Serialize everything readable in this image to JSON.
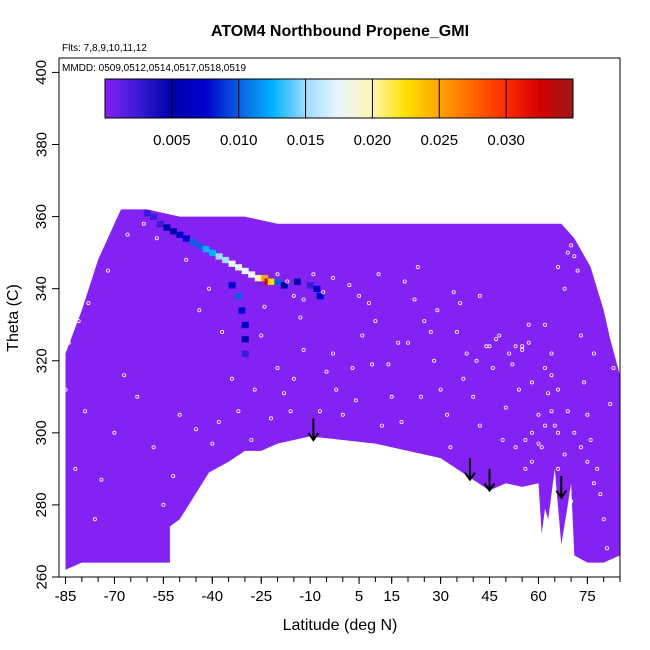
{
  "chart_data": {
    "type": "heatmap",
    "title": "ATOM4 Northbound Propene_GMI",
    "notes": [
      "Flts: 7,8,9,10,11,12",
      "MMDD: 0509,0512,0514,0517,0518,0519"
    ],
    "xlabel": "Latitude (deg N)",
    "ylabel": "Theta (C)",
    "xlim": [
      -87,
      85
    ],
    "ylim": [
      260,
      404
    ],
    "x_ticks": [
      -85,
      -70,
      -55,
      -40,
      -25,
      -10,
      5,
      15,
      30,
      45,
      60,
      75
    ],
    "x_tick_labels": [
      "-85",
      "-70",
      "-55",
      "-40",
      "-25",
      "-10",
      "5",
      "15",
      "30",
      "45",
      "60",
      "75"
    ],
    "y_ticks": [
      260,
      280,
      300,
      320,
      340,
      360,
      380,
      400
    ],
    "y_tick_labels": [
      "260",
      "280",
      "300",
      "320",
      "340",
      "360",
      "380",
      "400"
    ],
    "colorbar": {
      "min": 0.0,
      "max": 0.035,
      "ticks": [
        0.005,
        0.01,
        0.015,
        0.02,
        0.025,
        0.03
      ],
      "tick_labels": [
        "0.005",
        "0.010",
        "0.015",
        "0.020",
        "0.025",
        "0.030"
      ],
      "colors": [
        "#8322f2",
        "#3a1bd6",
        "#0000aa",
        "#0000cd",
        "#0c5ee0",
        "#00b0ff",
        "#9fdcff",
        "#eaf6ff",
        "#fff6b0",
        "#ffe000",
        "#ffa500",
        "#ff6600",
        "#ff2a00",
        "#d40000",
        "#9c1a1a"
      ]
    },
    "background_color": "#8322f2",
    "domain_top": [
      [
        -85,
        322
      ],
      [
        -80,
        334
      ],
      [
        -75,
        348
      ],
      [
        -70,
        358
      ],
      [
        -68,
        362
      ],
      [
        -60,
        362
      ],
      [
        -50,
        360
      ],
      [
        -40,
        360
      ],
      [
        -30,
        360
      ],
      [
        -20,
        358
      ],
      [
        -10,
        358
      ],
      [
        0,
        358
      ],
      [
        10,
        358
      ],
      [
        20,
        358
      ],
      [
        30,
        358
      ],
      [
        40,
        358
      ],
      [
        50,
        358
      ],
      [
        60,
        358
      ],
      [
        67,
        358
      ],
      [
        71,
        354
      ],
      [
        76,
        346
      ],
      [
        80,
        334
      ],
      [
        82,
        326
      ],
      [
        85,
        316
      ]
    ],
    "domain_bottom": [
      [
        85,
        266
      ],
      [
        80,
        264
      ],
      [
        75,
        264
      ],
      [
        71,
        266
      ],
      [
        70,
        286
      ],
      [
        69,
        280
      ],
      [
        67,
        269
      ],
      [
        65,
        290
      ],
      [
        63,
        276
      ],
      [
        62,
        279
      ],
      [
        61,
        272
      ],
      [
        60,
        286
      ],
      [
        55,
        285
      ],
      [
        50,
        286
      ],
      [
        45,
        284
      ],
      [
        40,
        287
      ],
      [
        30,
        293
      ],
      [
        20,
        295
      ],
      [
        10,
        297
      ],
      [
        0,
        298
      ],
      [
        -10,
        299
      ],
      [
        -20,
        297
      ],
      [
        -25,
        295
      ],
      [
        -30,
        295
      ],
      [
        -35,
        292
      ],
      [
        -41,
        289
      ],
      [
        -50,
        276
      ],
      [
        -53,
        274
      ],
      [
        -53,
        264
      ],
      [
        -60,
        264
      ],
      [
        -70,
        264
      ],
      [
        -80,
        264
      ],
      [
        -85,
        262
      ]
    ],
    "plume_cells": [
      {
        "x": -60,
        "y": 361,
        "v": 0.004
      },
      {
        "x": -58,
        "y": 360,
        "v": 0.003
      },
      {
        "x": -56,
        "y": 358,
        "v": 0.004
      },
      {
        "x": -54,
        "y": 357,
        "v": 0.006
      },
      {
        "x": -52,
        "y": 356,
        "v": 0.007
      },
      {
        "x": -50,
        "y": 355,
        "v": 0.008
      },
      {
        "x": -48,
        "y": 354,
        "v": 0.009
      },
      {
        "x": -46,
        "y": 353,
        "v": 0.01
      },
      {
        "x": -44,
        "y": 352,
        "v": 0.011
      },
      {
        "x": -42,
        "y": 351,
        "v": 0.012
      },
      {
        "x": -40,
        "y": 350,
        "v": 0.013
      },
      {
        "x": -38,
        "y": 349,
        "v": 0.015
      },
      {
        "x": -36,
        "y": 348,
        "v": 0.016
      },
      {
        "x": -34,
        "y": 347,
        "v": 0.017
      },
      {
        "x": -32,
        "y": 346,
        "v": 0.018
      },
      {
        "x": -30,
        "y": 345,
        "v": 0.017
      },
      {
        "x": -28,
        "y": 344,
        "v": 0.018
      },
      {
        "x": -26,
        "y": 343,
        "v": 0.02
      },
      {
        "x": -24,
        "y": 343,
        "v": 0.025
      },
      {
        "x": -23,
        "y": 342,
        "v": 0.031
      },
      {
        "x": -22,
        "y": 342,
        "v": 0.023
      },
      {
        "x": -20,
        "y": 342,
        "v": 0.01
      },
      {
        "x": -18,
        "y": 341,
        "v": 0.007
      },
      {
        "x": -14,
        "y": 342,
        "v": 0.005
      },
      {
        "x": -10,
        "y": 341,
        "v": 0.004
      },
      {
        "x": -8,
        "y": 340,
        "v": 0.009
      },
      {
        "x": -7,
        "y": 338,
        "v": 0.008
      },
      {
        "x": -34,
        "y": 341,
        "v": 0.009
      },
      {
        "x": -32,
        "y": 338,
        "v": 0.011
      },
      {
        "x": -31,
        "y": 334,
        "v": 0.008
      },
      {
        "x": -30,
        "y": 330,
        "v": 0.009
      },
      {
        "x": -30,
        "y": 326,
        "v": 0.007
      },
      {
        "x": -30,
        "y": 322,
        "v": 0.004
      },
      {
        "x": -37,
        "y": 332,
        "v": 0.002
      },
      {
        "x": -36,
        "y": 322,
        "v": 0.001
      }
    ],
    "cell_size": [
      2.0,
      1.6
    ],
    "arrows": [
      {
        "x": -9,
        "y_top": 304,
        "y_bottom": 298
      },
      {
        "x": 39,
        "y_top": 293,
        "y_bottom": 287
      },
      {
        "x": 45,
        "y_top": 290,
        "y_bottom": 284
      },
      {
        "x": 67,
        "y_top": 288,
        "y_bottom": 282
      }
    ],
    "sample_points": [
      [
        -78,
        336
      ],
      [
        -81,
        331
      ],
      [
        -84,
        325
      ],
      [
        -72,
        345
      ],
      [
        -66,
        355
      ],
      [
        -61,
        358
      ],
      [
        -57,
        354
      ],
      [
        -48,
        348
      ],
      [
        -41,
        340
      ],
      [
        -44,
        334
      ],
      [
        -37,
        328
      ],
      [
        -25,
        327
      ],
      [
        -20,
        318
      ],
      [
        -18,
        311
      ],
      [
        -16,
        306
      ],
      [
        -12,
        323
      ],
      [
        -5,
        317
      ],
      [
        -2,
        312
      ],
      [
        0,
        305
      ],
      [
        3,
        318
      ],
      [
        6,
        327
      ],
      [
        8,
        336
      ],
      [
        10,
        331
      ],
      [
        14,
        319
      ],
      [
        15,
        310
      ],
      [
        18,
        303
      ],
      [
        20,
        325
      ],
      [
        22,
        337
      ],
      [
        25,
        331
      ],
      [
        28,
        320
      ],
      [
        30,
        312
      ],
      [
        32,
        305
      ],
      [
        35,
        328
      ],
      [
        36,
        336
      ],
      [
        38,
        322
      ],
      [
        40,
        310
      ],
      [
        42,
        302
      ],
      [
        44,
        324
      ],
      [
        46,
        318
      ],
      [
        48,
        327
      ],
      [
        50,
        307
      ],
      [
        52,
        319
      ],
      [
        54,
        312
      ],
      [
        55,
        323
      ],
      [
        57,
        330
      ],
      [
        58,
        314
      ],
      [
        60,
        305
      ],
      [
        61,
        296
      ],
      [
        63,
        311
      ],
      [
        64,
        322
      ],
      [
        65,
        302
      ],
      [
        66,
        290
      ],
      [
        68,
        340
      ],
      [
        70,
        352
      ],
      [
        72,
        345
      ],
      [
        73,
        327
      ],
      [
        74,
        314
      ],
      [
        75,
        305
      ],
      [
        76,
        298
      ],
      [
        78,
        290
      ],
      [
        79,
        283
      ],
      [
        80,
        276
      ],
      [
        81,
        268
      ],
      [
        82,
        308
      ],
      [
        83,
        318
      ],
      [
        77,
        322
      ],
      [
        62,
        330
      ],
      [
        58,
        300
      ],
      [
        56,
        298
      ],
      [
        53,
        296
      ],
      [
        49,
        298
      ],
      [
        41,
        320
      ],
      [
        37,
        315
      ],
      [
        33,
        296
      ],
      [
        27,
        328
      ],
      [
        24,
        310
      ],
      [
        17,
        325
      ],
      [
        12,
        302
      ],
      [
        9,
        319
      ],
      [
        4,
        309
      ],
      [
        1,
        296
      ],
      [
        -3,
        322
      ],
      [
        -7,
        306
      ],
      [
        -13,
        332
      ],
      [
        -15,
        315
      ],
      [
        -22,
        304
      ],
      [
        -24,
        335
      ],
      [
        -27,
        312
      ],
      [
        -32,
        306
      ],
      [
        -34,
        315
      ],
      [
        -45,
        301
      ],
      [
        -50,
        305
      ],
      [
        -52,
        288
      ],
      [
        -55,
        280
      ],
      [
        -58,
        296
      ],
      [
        -63,
        310
      ],
      [
        -67,
        316
      ],
      [
        -70,
        300
      ],
      [
        -74,
        287
      ],
      [
        -76,
        276
      ],
      [
        -79,
        306
      ],
      [
        -82,
        290
      ],
      [
        -85,
        312
      ],
      [
        -40,
        297
      ],
      [
        -38,
        303
      ],
      [
        -28,
        298
      ],
      [
        -20,
        344
      ],
      [
        -17,
        342
      ],
      [
        -15,
        338
      ],
      [
        -12,
        337
      ],
      [
        -9,
        344
      ],
      [
        -6,
        339
      ],
      [
        -3,
        343
      ],
      [
        2,
        341
      ],
      [
        5,
        338
      ],
      [
        11,
        344
      ],
      [
        19,
        342
      ],
      [
        23,
        346
      ],
      [
        29,
        334
      ],
      [
        34,
        339
      ],
      [
        42,
        338
      ],
      [
        45,
        324
      ],
      [
        47,
        326
      ],
      [
        51,
        322
      ],
      [
        53,
        324
      ],
      [
        55,
        324
      ],
      [
        57,
        325
      ],
      [
        62,
        318
      ],
      [
        64,
        316
      ],
      [
        66,
        312
      ],
      [
        69,
        306
      ],
      [
        71,
        300
      ],
      [
        73,
        296
      ],
      [
        75,
        292
      ],
      [
        77,
        286
      ],
      [
        66,
        346
      ],
      [
        69,
        350
      ],
      [
        71,
        349
      ],
      [
        73,
        356
      ],
      [
        66,
        300
      ],
      [
        64,
        306
      ],
      [
        62,
        302
      ],
      [
        60,
        297
      ],
      [
        58,
        292
      ],
      [
        56,
        290
      ],
      [
        68,
        294
      ],
      [
        70,
        281
      ]
    ]
  }
}
